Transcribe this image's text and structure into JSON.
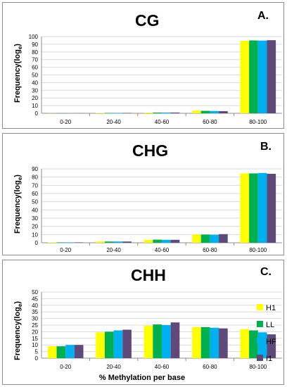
{
  "chart_data": [
    {
      "type": "bar",
      "panel_letter": "A.",
      "title": "CG",
      "ylabel": "Frequency(log",
      "ylabel_sub": "e",
      "ylabel_close": ")",
      "xlabel": "",
      "ylim": [
        0,
        100
      ],
      "ytick_step": 10,
      "categories": [
        "0-20",
        "20-40",
        "40-60",
        "60-80",
        "80-100"
      ],
      "series": [
        {
          "name": "H1",
          "values": [
            0.1,
            0.5,
            1.0,
            3.5,
            94.5
          ]
        },
        {
          "name": "LL",
          "values": [
            0.1,
            0.5,
            1.0,
            3.2,
            95.0
          ]
        },
        {
          "name": "HF",
          "values": [
            0.1,
            0.5,
            1.0,
            3.0,
            94.8
          ]
        },
        {
          "name": "I1",
          "values": [
            0.1,
            0.5,
            1.0,
            2.8,
            95.3
          ]
        }
      ]
    },
    {
      "type": "bar",
      "panel_letter": "B.",
      "title": "CHG",
      "ylabel": "Frequency(log",
      "ylabel_sub": "e",
      "ylabel_close": ")",
      "xlabel": "",
      "ylim": [
        0,
        90
      ],
      "ytick_step": 10,
      "categories": [
        "0-20",
        "20-40",
        "40-60",
        "60-80",
        "80-100"
      ],
      "series": [
        {
          "name": "H1",
          "values": [
            0.5,
            1.5,
            3.5,
            10.0,
            84.5
          ]
        },
        {
          "name": "LL",
          "values": [
            0.5,
            1.5,
            3.8,
            10.0,
            84.5
          ]
        },
        {
          "name": "HF",
          "values": [
            0.5,
            1.5,
            3.6,
            9.8,
            85.0
          ]
        },
        {
          "name": "I1",
          "values": [
            0.5,
            1.5,
            3.6,
            10.5,
            84.0
          ]
        }
      ]
    },
    {
      "type": "bar",
      "panel_letter": "C.",
      "title": "CHH",
      "ylabel": "Frequency(log",
      "ylabel_sub": "e",
      "ylabel_close": ")",
      "xlabel": "% Methylation per base",
      "ylim": [
        0,
        50
      ],
      "ytick_step": 5,
      "categories": [
        "0-20",
        "20-40",
        "40-60",
        "60-80",
        "80-100"
      ],
      "series": [
        {
          "name": "H1",
          "values": [
            9.0,
            19.5,
            24.5,
            23.5,
            22.0
          ]
        },
        {
          "name": "LL",
          "values": [
            9.0,
            20.0,
            25.5,
            23.5,
            21.0
          ]
        },
        {
          "name": "HF",
          "values": [
            10.0,
            21.0,
            25.0,
            23.0,
            19.5
          ]
        },
        {
          "name": "I1",
          "values": [
            10.0,
            21.5,
            27.0,
            22.5,
            18.0
          ]
        }
      ]
    }
  ],
  "legend": {
    "placement": "right",
    "items": [
      {
        "name": "H1",
        "color": "#ffff00"
      },
      {
        "name": "LL",
        "color": "#00b050"
      },
      {
        "name": "HF",
        "color": "#00b0f0"
      },
      {
        "name": "I1",
        "color": "#5f497a"
      }
    ]
  },
  "colors": {
    "H1": "#ffff00",
    "LL": "#00b050",
    "HF": "#00b0f0",
    "I1": "#5f497a",
    "grid": "#d9d9d9"
  }
}
